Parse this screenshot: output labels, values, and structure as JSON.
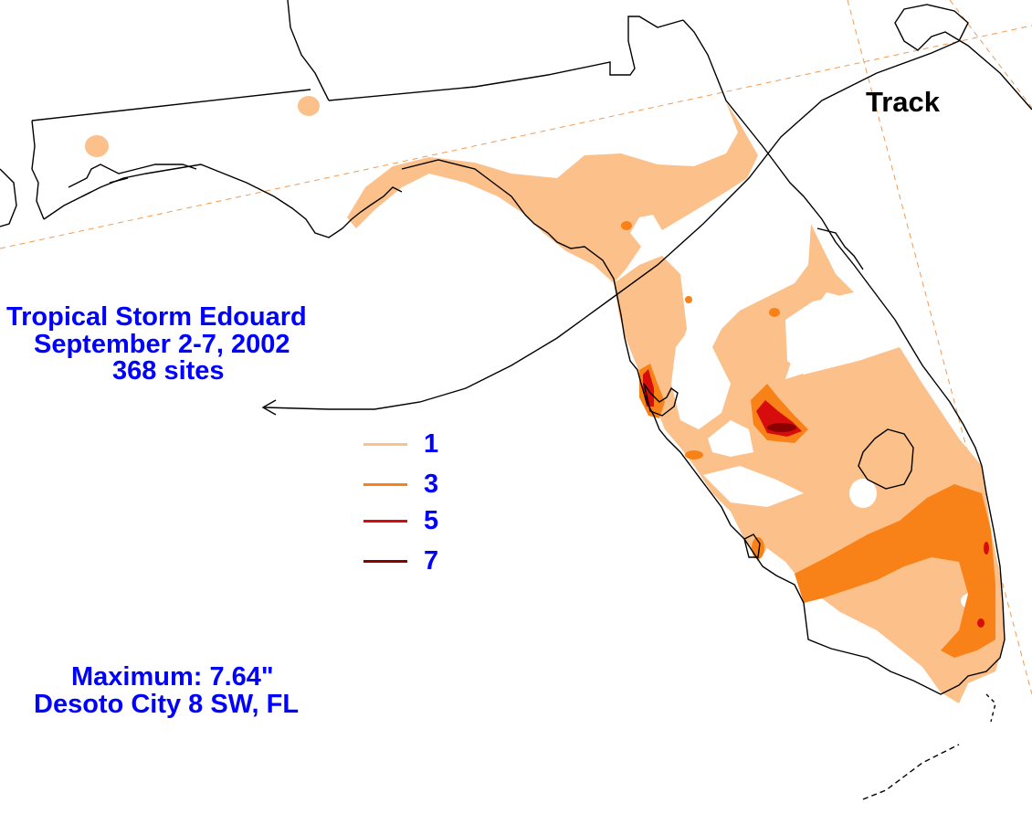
{
  "title": {
    "line1": "Tropical Storm Edouard",
    "line2": "September 2-7, 2002",
    "line3": "368 sites"
  },
  "legend": {
    "items": [
      {
        "value": "1",
        "color": "#fcc08a"
      },
      {
        "value": "3",
        "color": "#f98218"
      },
      {
        "value": "5",
        "color": "#d70d0d"
      },
      {
        "value": "7",
        "color": "#8b0000"
      }
    ]
  },
  "maximum": {
    "line1": "Maximum: 7.64\"",
    "line2": "Desoto City 8 SW, FL"
  },
  "track_label": "Track",
  "colors": {
    "light": "#fcc08a",
    "orange": "#f98218",
    "red": "#d70d0d",
    "darkred": "#8b0000",
    "text": "#0000ff",
    "grid": "#f29a52"
  }
}
